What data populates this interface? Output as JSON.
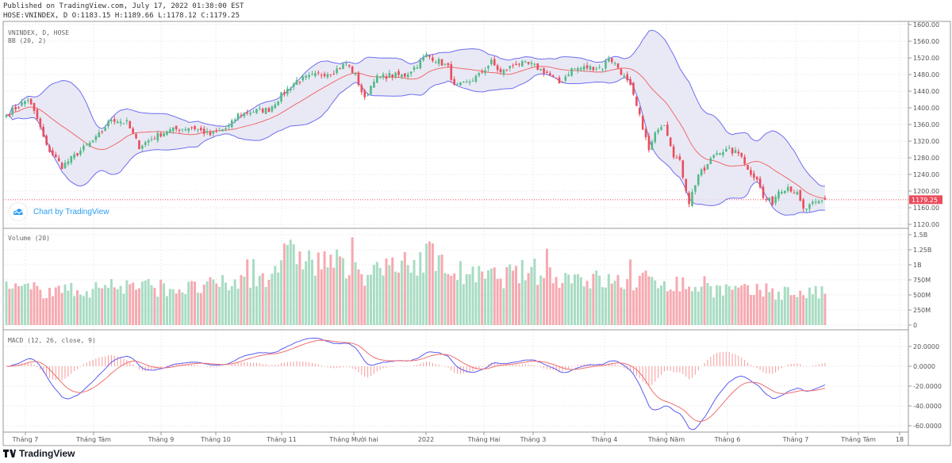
{
  "header": {
    "published": "Published on TradingView.com, July 17, 2022 01:38:00 EST",
    "ohlc": "HOSE:VNINDEX, D O:1183.15 H:1189.66 L:1178.12 C:1179.25"
  },
  "price_pane": {
    "symbol_label": "VNINDEX, D, HOSE",
    "indicator_label": "BB (20, 2)",
    "last_price_label": "1179.25",
    "badge_text": "Chart by TradingView"
  },
  "volume_pane": {
    "label": "Volume (20)"
  },
  "macd_pane": {
    "label": "MACD (12, 26, close, 9)"
  },
  "footer": {
    "logo_text": "TradingView"
  },
  "colors": {
    "up": "#53b987",
    "down": "#eb4d5c",
    "bb_band": "#6e6ef0",
    "bb_fill": "#e3e3f3",
    "bb_basis": "#ef6a6a",
    "macd_line": "#5b5bf0",
    "signal_line": "#f07070",
    "histogram": "#f79a9a",
    "last_price": "#eb4d5c"
  },
  "chart_data": [
    {
      "type": "candlestick",
      "title": "HOSE:VNINDEX, D",
      "last_bar": {
        "open": 1183.15,
        "high": 1189.66,
        "low": 1178.12,
        "close": 1179.25
      },
      "ylim": [
        1110,
        1610
      ],
      "y_ticks": [
        "1600.00",
        "1560.00",
        "1520.00",
        "1480.00",
        "1440.00",
        "1400.00",
        "1360.00",
        "1320.00",
        "1280.00",
        "1240.00",
        "1200.00",
        "1160.00",
        "1120.00"
      ],
      "x_ticks": [
        "Tháng 7",
        "Tháng Tám",
        "Tháng 9",
        "Tháng 10",
        "Tháng 11",
        "Tháng Mười hai",
        "2022",
        "Tháng Hai",
        "Tháng 3",
        "Tháng 4",
        "Tháng Năm",
        "Tháng 6",
        "Tháng 7",
        "Tháng Tám",
        "18"
      ],
      "close_anchors_by_bar": [
        [
          0,
          1383
        ],
        [
          7,
          1421
        ],
        [
          10,
          1373
        ],
        [
          13,
          1307
        ],
        [
          18,
          1259
        ],
        [
          24,
          1297
        ],
        [
          29,
          1326
        ],
        [
          34,
          1373
        ],
        [
          39,
          1364
        ],
        [
          43,
          1307
        ],
        [
          47,
          1326
        ],
        [
          52,
          1345
        ],
        [
          60,
          1354
        ],
        [
          66,
          1335
        ],
        [
          72,
          1354
        ],
        [
          75,
          1383
        ],
        [
          80,
          1392
        ],
        [
          85,
          1396
        ],
        [
          89,
          1430
        ],
        [
          94,
          1465
        ],
        [
          100,
          1478
        ],
        [
          106,
          1488
        ],
        [
          110,
          1507
        ],
        [
          113,
          1478
        ],
        [
          116,
          1420
        ],
        [
          119,
          1470
        ],
        [
          124,
          1478
        ],
        [
          129,
          1478
        ],
        [
          133,
          1503
        ],
        [
          136,
          1526
        ],
        [
          139,
          1516
        ],
        [
          143,
          1497
        ],
        [
          145,
          1450
        ],
        [
          149,
          1459
        ],
        [
          153,
          1478
        ],
        [
          157,
          1510
        ],
        [
          160,
          1484
        ],
        [
          165,
          1507
        ],
        [
          170,
          1503
        ],
        [
          175,
          1484
        ],
        [
          179,
          1459
        ],
        [
          183,
          1493
        ],
        [
          188,
          1497
        ],
        [
          193,
          1497
        ],
        [
          195,
          1522
        ],
        [
          198,
          1497
        ],
        [
          202,
          1450
        ],
        [
          204,
          1402
        ],
        [
          206,
          1354
        ],
        [
          208,
          1297
        ],
        [
          211,
          1354
        ],
        [
          213,
          1364
        ],
        [
          216,
          1288
        ],
        [
          218,
          1269
        ],
        [
          221,
          1173
        ],
        [
          224,
          1240
        ],
        [
          226,
          1250
        ],
        [
          229,
          1288
        ],
        [
          231,
          1297
        ],
        [
          234,
          1297
        ],
        [
          238,
          1288
        ],
        [
          240,
          1250
        ],
        [
          243,
          1231
        ],
        [
          245,
          1183
        ],
        [
          248,
          1173
        ],
        [
          250,
          1202
        ],
        [
          253,
          1211
        ],
        [
          256,
          1192
        ],
        [
          258,
          1154
        ],
        [
          261,
          1168
        ],
        [
          265,
          1179.25
        ]
      ],
      "indicators": [
        "BB (20, 2)"
      ]
    },
    {
      "type": "bar",
      "title": "Volume (20)",
      "y_ticks": [
        "1.5B",
        "1.25B",
        "1B",
        "750M",
        "500M",
        "250M",
        "0"
      ],
      "ylim": [
        0,
        1500
      ],
      "unit": "M",
      "volume_anchors_by_bar": [
        [
          0,
          600
        ],
        [
          20,
          560
        ],
        [
          40,
          650
        ],
        [
          60,
          600
        ],
        [
          75,
          700
        ],
        [
          85,
          850
        ],
        [
          89,
          1100
        ],
        [
          95,
          1200
        ],
        [
          100,
          1000
        ],
        [
          105,
          1100
        ],
        [
          110,
          900
        ],
        [
          120,
          850
        ],
        [
          130,
          950
        ],
        [
          136,
          1200
        ],
        [
          140,
          1000
        ],
        [
          150,
          800
        ],
        [
          160,
          800
        ],
        [
          170,
          900
        ],
        [
          180,
          800
        ],
        [
          190,
          750
        ],
        [
          200,
          700
        ],
        [
          210,
          750
        ],
        [
          220,
          650
        ],
        [
          230,
          600
        ],
        [
          240,
          550
        ],
        [
          250,
          550
        ],
        [
          265,
          520
        ]
      ]
    },
    {
      "type": "line",
      "title": "MACD (12, 26, close, 9)",
      "y_ticks": [
        "20.0000",
        "0.0000",
        "-20.0000",
        "-40.0000",
        "-60.0000"
      ],
      "ylim": [
        -70,
        35
      ],
      "series": [
        "MACD",
        "Signal",
        "Histogram"
      ]
    }
  ]
}
